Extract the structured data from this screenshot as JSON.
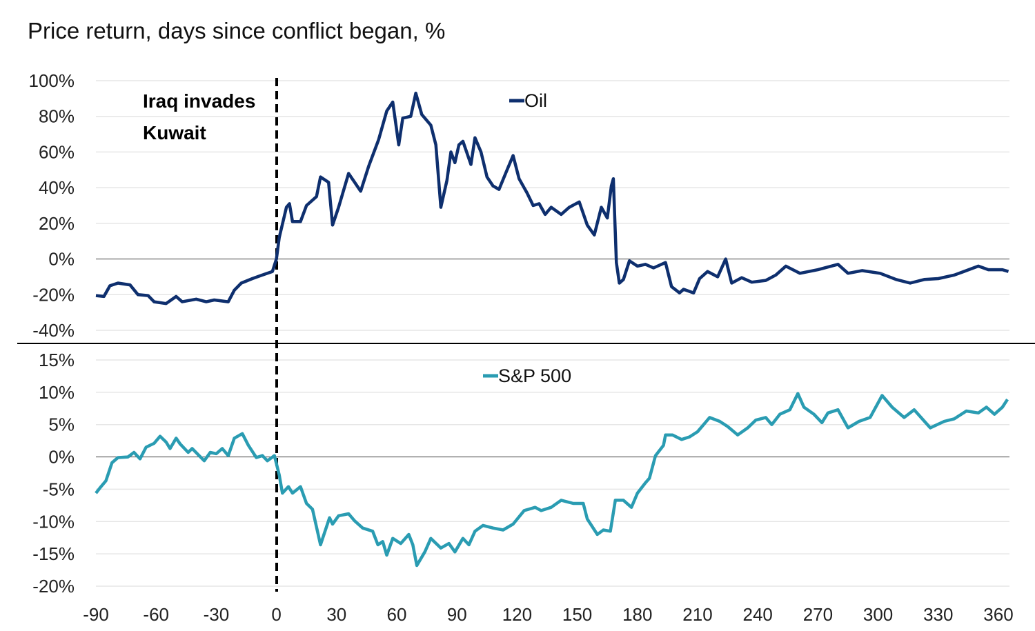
{
  "chart_data": [
    {
      "type": "line",
      "title": "Price return, days since conflict began, %",
      "annotation": {
        "lines": [
          "Iraq invades",
          "Kuwait"
        ],
        "x": 0
      },
      "xlim": [
        -90,
        365
      ],
      "x_ticks": [
        "-90",
        "-60",
        "-30",
        "0",
        "30",
        "60",
        "90",
        "120",
        "150",
        "180",
        "210",
        "240",
        "270",
        "300",
        "330",
        "360"
      ],
      "ylim": [
        -40,
        100
      ],
      "y_ticks": [
        "100%",
        "80%",
        "60%",
        "40%",
        "20%",
        "0%",
        "-20%",
        "-40%"
      ],
      "grid": true,
      "legend_placement": "top-center",
      "series": [
        {
          "name": "Oil",
          "color": "#0e2f6e",
          "points": [
            [
              -90,
              -20.5
            ],
            [
              -86,
              -21
            ],
            [
              -83,
              -15
            ],
            [
              -79,
              -13.5
            ],
            [
              -73,
              -14.5
            ],
            [
              -69,
              -20
            ],
            [
              -64,
              -20.5
            ],
            [
              -61,
              -24
            ],
            [
              -55,
              -25
            ],
            [
              -50,
              -21
            ],
            [
              -47,
              -24
            ],
            [
              -40,
              -22.5
            ],
            [
              -35,
              -24
            ],
            [
              -31,
              -23
            ],
            [
              -24,
              -24
            ],
            [
              -21,
              -17.5
            ],
            [
              -17.5,
              -13.5
            ],
            [
              -12,
              -11
            ],
            [
              -7,
              -9
            ],
            [
              -2,
              -7
            ],
            [
              0,
              0
            ],
            [
              1.4,
              12
            ],
            [
              5,
              29
            ],
            [
              6.5,
              31
            ],
            [
              8,
              21
            ],
            [
              12,
              21
            ],
            [
              15,
              30
            ],
            [
              20,
              35
            ],
            [
              22,
              46
            ],
            [
              26,
              43
            ],
            [
              28,
              19
            ],
            [
              31,
              29
            ],
            [
              36,
              48
            ],
            [
              39,
              43
            ],
            [
              42,
              38
            ],
            [
              46,
              52
            ],
            [
              51,
              67
            ],
            [
              55,
              83
            ],
            [
              58,
              88
            ],
            [
              61,
              64
            ],
            [
              63,
              79
            ],
            [
              67,
              80
            ],
            [
              69.5,
              93
            ],
            [
              72.5,
              81
            ],
            [
              77,
              75
            ],
            [
              79.5,
              64
            ],
            [
              82,
              29
            ],
            [
              85,
              44
            ],
            [
              87,
              60
            ],
            [
              89,
              54
            ],
            [
              91,
              64
            ],
            [
              93,
              66
            ],
            [
              97,
              53
            ],
            [
              99,
              68
            ],
            [
              102,
              60
            ],
            [
              105,
              46
            ],
            [
              108,
              41
            ],
            [
              111,
              39
            ],
            [
              115,
              50
            ],
            [
              118,
              58
            ],
            [
              121,
              45
            ],
            [
              125,
              37
            ],
            [
              128,
              30
            ],
            [
              131,
              31
            ],
            [
              134,
              25
            ],
            [
              137,
              29
            ],
            [
              142,
              25
            ],
            [
              146,
              29
            ],
            [
              151,
              32
            ],
            [
              155,
              19
            ],
            [
              158.5,
              13.5
            ],
            [
              162,
              29
            ],
            [
              165,
              23
            ],
            [
              167,
              41
            ],
            [
              168,
              45
            ],
            [
              169.5,
              -2
            ],
            [
              171,
              -13.5
            ],
            [
              173,
              -11.5
            ],
            [
              176,
              -1
            ],
            [
              180,
              -4
            ],
            [
              184,
              -3
            ],
            [
              188,
              -5
            ],
            [
              194,
              -2
            ],
            [
              197,
              -15.5
            ],
            [
              201,
              -19
            ],
            [
              203,
              -17
            ],
            [
              208,
              -19
            ],
            [
              211,
              -11
            ],
            [
              215,
              -7
            ],
            [
              220,
              -10
            ],
            [
              224,
              0
            ],
            [
              227,
              -13.5
            ],
            [
              232,
              -10.5
            ],
            [
              237,
              -13
            ],
            [
              244,
              -12
            ],
            [
              249,
              -9
            ],
            [
              254,
              -4
            ],
            [
              261,
              -8
            ],
            [
              270,
              -6
            ],
            [
              280,
              -3
            ],
            [
              285,
              -8
            ],
            [
              292,
              -6.5
            ],
            [
              301,
              -8
            ],
            [
              309,
              -11.5
            ],
            [
              316,
              -13.5
            ],
            [
              323,
              -11.5
            ],
            [
              330,
              -11
            ],
            [
              338,
              -9
            ],
            [
              344,
              -6.5
            ],
            [
              350,
              -4
            ],
            [
              355,
              -6
            ],
            [
              362,
              -6
            ],
            [
              365,
              -7
            ]
          ]
        }
      ]
    },
    {
      "type": "line",
      "xlim": [
        -90,
        365
      ],
      "ylim": [
        -20,
        15
      ],
      "y_ticks": [
        "15%",
        "10%",
        "5%",
        "0%",
        "-5%",
        "-10%",
        "-15%",
        "-20%"
      ],
      "grid": true,
      "legend_placement": "top-center",
      "series": [
        {
          "name": "S&P 500",
          "color": "#2a9cb2",
          "points": [
            [
              -90,
              -5.6
            ],
            [
              -88,
              -4.8
            ],
            [
              -85,
              -3.7
            ],
            [
              -82,
              -0.9
            ],
            [
              -79,
              -0.1
            ],
            [
              -74,
              0
            ],
            [
              -71,
              0.7
            ],
            [
              -68,
              -0.3
            ],
            [
              -65,
              1.5
            ],
            [
              -61,
              2.1
            ],
            [
              -58,
              3.2
            ],
            [
              -55,
              2.3
            ],
            [
              -53,
              1.3
            ],
            [
              -50,
              2.9
            ],
            [
              -48,
              2
            ],
            [
              -44,
              0.7
            ],
            [
              -42,
              1.3
            ],
            [
              -36,
              -0.6
            ],
            [
              -33,
              0.7
            ],
            [
              -30,
              0.5
            ],
            [
              -27,
              1.3
            ],
            [
              -24,
              0.2
            ],
            [
              -21,
              2.9
            ],
            [
              -17,
              3.6
            ],
            [
              -14,
              1.8
            ],
            [
              -10,
              -0.1
            ],
            [
              -7,
              0.2
            ],
            [
              -4.5,
              -0.6
            ],
            [
              -1,
              0.2
            ],
            [
              1.4,
              -2.8
            ],
            [
              3,
              -5.6
            ],
            [
              6,
              -4.6
            ],
            [
              8,
              -5.6
            ],
            [
              12,
              -4.6
            ],
            [
              15,
              -7.2
            ],
            [
              18,
              -8.1
            ],
            [
              22,
              -13.6
            ],
            [
              23.7,
              -12
            ],
            [
              26.5,
              -9.4
            ],
            [
              28,
              -10.4
            ],
            [
              31,
              -9.1
            ],
            [
              36,
              -8.8
            ],
            [
              39,
              -9.9
            ],
            [
              43,
              -11
            ],
            [
              48,
              -11.5
            ],
            [
              50.6,
              -13.6
            ],
            [
              53,
              -13.1
            ],
            [
              55,
              -15.2
            ],
            [
              58,
              -12.6
            ],
            [
              62,
              -13.4
            ],
            [
              66,
              -12
            ],
            [
              68,
              -13.6
            ],
            [
              70,
              -16.8
            ],
            [
              74,
              -14.7
            ],
            [
              77,
              -12.6
            ],
            [
              82,
              -14.1
            ],
            [
              86,
              -13.4
            ],
            [
              89,
              -14.7
            ],
            [
              93,
              -12.6
            ],
            [
              96,
              -13.6
            ],
            [
              99,
              -11.5
            ],
            [
              103,
              -10.6
            ],
            [
              108,
              -11
            ],
            [
              113,
              -11.3
            ],
            [
              118,
              -10.4
            ],
            [
              123.5,
              -8.3
            ],
            [
              129,
              -7.8
            ],
            [
              132,
              -8.3
            ],
            [
              137,
              -7.8
            ],
            [
              142,
              -6.7
            ],
            [
              148,
              -7.2
            ],
            [
              153,
              -7.2
            ],
            [
              155,
              -9.6
            ],
            [
              160,
              -12
            ],
            [
              163,
              -11.3
            ],
            [
              166.5,
              -11.5
            ],
            [
              169,
              -6.7
            ],
            [
              173,
              -6.7
            ],
            [
              177,
              -7.8
            ],
            [
              180,
              -5.6
            ],
            [
              184,
              -4
            ],
            [
              186,
              -3.3
            ],
            [
              189,
              0.2
            ],
            [
              193,
              1.8
            ],
            [
              194,
              3.4
            ],
            [
              197.5,
              3.4
            ],
            [
              202,
              2.7
            ],
            [
              206,
              3.1
            ],
            [
              210,
              3.9
            ],
            [
              216,
              6.1
            ],
            [
              221,
              5.5
            ],
            [
              225,
              4.7
            ],
            [
              230,
              3.4
            ],
            [
              235,
              4.5
            ],
            [
              239,
              5.7
            ],
            [
              244,
              6.1
            ],
            [
              247,
              5
            ],
            [
              251,
              6.6
            ],
            [
              256,
              7.3
            ],
            [
              260,
              9.8
            ],
            [
              263,
              7.7
            ],
            [
              268,
              6.6
            ],
            [
              272,
              5.3
            ],
            [
              275,
              6.8
            ],
            [
              280,
              7.3
            ],
            [
              285,
              4.5
            ],
            [
              290.5,
              5.5
            ],
            [
              296,
              6.1
            ],
            [
              302,
              9.5
            ],
            [
              307,
              7.7
            ],
            [
              313,
              6.1
            ],
            [
              318,
              7.3
            ],
            [
              326,
              4.5
            ],
            [
              333,
              5.5
            ],
            [
              338,
              5.9
            ],
            [
              344,
              7.1
            ],
            [
              350,
              6.8
            ],
            [
              354,
              7.7
            ],
            [
              358,
              6.6
            ],
            [
              362,
              7.7
            ],
            [
              364.5,
              8.9
            ]
          ]
        }
      ]
    }
  ]
}
